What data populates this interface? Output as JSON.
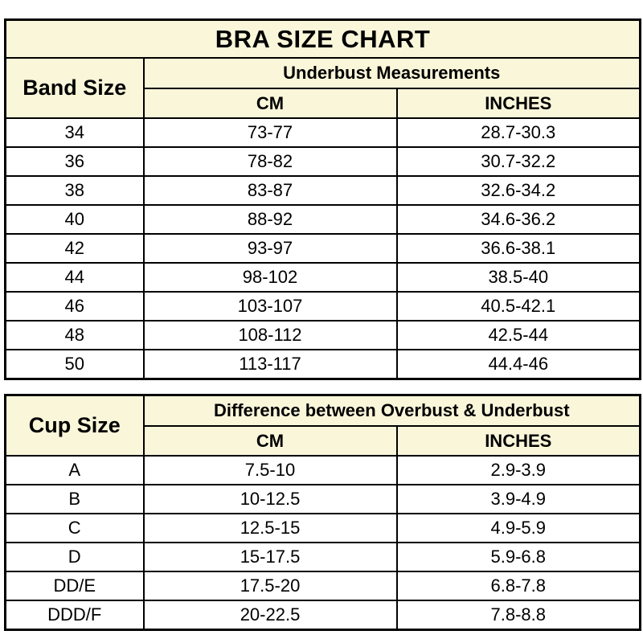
{
  "title": "BRA SIZE CHART",
  "colors": {
    "header_bg": "#FAF6DA",
    "row_bg": "#FFFFFF",
    "border": "#000000",
    "text": "#000000"
  },
  "chart_data": [
    {
      "type": "table",
      "title": "BRA SIZE CHART",
      "row_header": "Band Size",
      "group_header": "Underbust Measurements",
      "columns": [
        "CM",
        "INCHES"
      ],
      "rows": [
        [
          "34",
          "73-77",
          "28.7-30.3"
        ],
        [
          "36",
          "78-82",
          "30.7-32.2"
        ],
        [
          "38",
          "83-87",
          "32.6-34.2"
        ],
        [
          "40",
          "88-92",
          "34.6-36.2"
        ],
        [
          "42",
          "93-97",
          "36.6-38.1"
        ],
        [
          "44",
          "98-102",
          "38.5-40"
        ],
        [
          "46",
          "103-107",
          "40.5-42.1"
        ],
        [
          "48",
          "108-112",
          "42.5-44"
        ],
        [
          "50",
          "113-117",
          "44.4-46"
        ]
      ]
    },
    {
      "type": "table",
      "title": "",
      "row_header": "Cup Size",
      "group_header": "Difference between Overbust & Underbust",
      "columns": [
        "CM",
        "INCHES"
      ],
      "rows": [
        [
          "A",
          "7.5-10",
          "2.9-3.9"
        ],
        [
          "B",
          "10-12.5",
          "3.9-4.9"
        ],
        [
          "C",
          "12.5-15",
          "4.9-5.9"
        ],
        [
          "D",
          "15-17.5",
          "5.9-6.8"
        ],
        [
          "DD/E",
          "17.5-20",
          "6.8-7.8"
        ],
        [
          "DDD/F",
          "20-22.5",
          "7.8-8.8"
        ]
      ]
    }
  ]
}
